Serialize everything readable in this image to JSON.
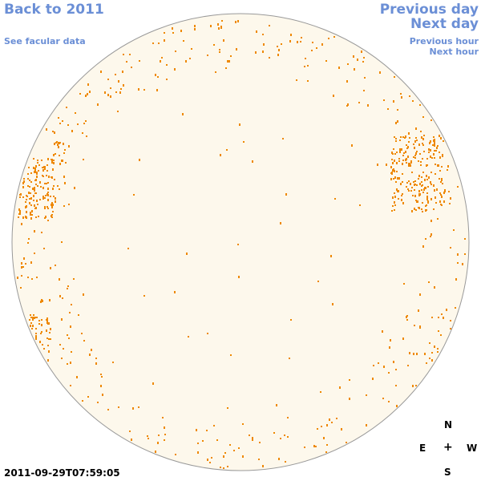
{
  "nav": {
    "back_label": "Back to 2011",
    "see_facular_label": "See facular data",
    "previous_day_label": "Previous day",
    "next_day_label": "Next day",
    "previous_hour_label": "Previous hour",
    "next_hour_label": "Next hour"
  },
  "compass": {
    "north": "N",
    "east": "E",
    "center": "+",
    "west": "W",
    "south": "S"
  },
  "timestamp": "2011-09-29T07:59:05",
  "colors": {
    "disk_fill": "#fdf8ec",
    "disk_stroke": "#999999",
    "facula": "#ee8800",
    "link": "#6b8fd6"
  }
}
